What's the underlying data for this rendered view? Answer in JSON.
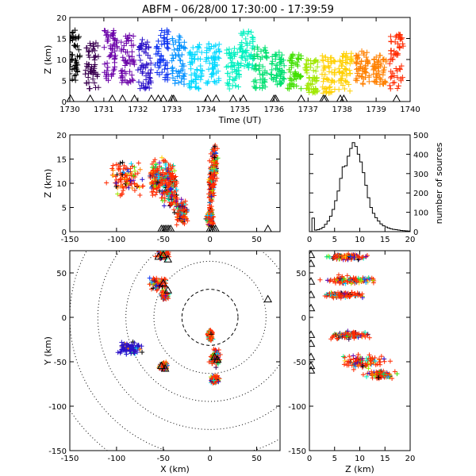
{
  "title": "ABFM - 06/28/00 17:30:00 - 17:39:59",
  "colors": {
    "triangle": "#000000",
    "frame": "#000000",
    "ring": "#000000",
    "palette": [
      "#000000",
      "#3a0050",
      "#6a00a8",
      "#2a10c8",
      "#0a30f0",
      "#0090ff",
      "#00d8ff",
      "#00f0c0",
      "#00e070",
      "#40e000",
      "#a0e800",
      "#ffd000",
      "#ff8000",
      "#ff2a00"
    ]
  },
  "chart_data": [
    {
      "id": "time_height",
      "type": "scatter",
      "xlabel": "Time (UT)",
      "ylabel": "Z (km)",
      "xlim": [
        1730,
        1740
      ],
      "ylim": [
        0,
        20
      ],
      "xticks": [
        "1730",
        "1731",
        "1732",
        "1733",
        "1734",
        "1735",
        "1736",
        "1737",
        "1738",
        "1739",
        "1740"
      ],
      "yticks": [
        "0",
        "5",
        "10",
        "15",
        "20"
      ],
      "clusters": [
        {
          "t": 1730.1,
          "zmin": 5,
          "zmax": 17,
          "ci": 0
        },
        {
          "t": 1730.65,
          "zmin": 3,
          "zmax": 14,
          "ci": 1
        },
        {
          "t": 1731.2,
          "zmin": 5,
          "zmax": 17,
          "ci": 2
        },
        {
          "t": 1731.7,
          "zmin": 4,
          "zmax": 16,
          "ci": 2
        },
        {
          "t": 1732.2,
          "zmin": 3,
          "zmax": 15,
          "ci": 3
        },
        {
          "t": 1732.7,
          "zmin": 5,
          "zmax": 17,
          "ci": 4
        },
        {
          "t": 1733.2,
          "zmin": 4,
          "zmax": 16,
          "ci": 5
        },
        {
          "t": 1733.7,
          "zmin": 3,
          "zmax": 14,
          "ci": 6
        },
        {
          "t": 1734.2,
          "zmin": 4,
          "zmax": 14,
          "ci": 6
        },
        {
          "t": 1734.8,
          "zmin": 3,
          "zmax": 13,
          "ci": 7
        },
        {
          "t": 1735.2,
          "zmin": 8,
          "zmax": 17,
          "ci": 7
        },
        {
          "t": 1735.6,
          "zmin": 3,
          "zmax": 13,
          "ci": 8
        },
        {
          "t": 1736.1,
          "zmin": 4,
          "zmax": 12,
          "ci": 8
        },
        {
          "t": 1736.6,
          "zmin": 3,
          "zmax": 12,
          "ci": 9
        },
        {
          "t": 1737.1,
          "zmin": 2,
          "zmax": 10,
          "ci": 10
        },
        {
          "t": 1737.6,
          "zmin": 2,
          "zmax": 11,
          "ci": 11
        },
        {
          "t": 1738.1,
          "zmin": 2,
          "zmax": 12,
          "ci": 11
        },
        {
          "t": 1738.6,
          "zmin": 4,
          "zmax": 12,
          "ci": 12
        },
        {
          "t": 1739.1,
          "zmin": 4,
          "zmax": 11,
          "ci": 12
        },
        {
          "t": 1739.6,
          "zmin": 3,
          "zmax": 16,
          "ci": 13
        }
      ],
      "triangles_t": [
        1730.02,
        1730.6,
        1731.25,
        1731.55,
        1731.9,
        1732.4,
        1732.6,
        1732.75,
        1733.0,
        1733.05,
        1734.05,
        1734.3,
        1734.8,
        1735.1,
        1736.0,
        1736.05,
        1736.8,
        1737.45,
        1737.5,
        1737.95,
        1738.05,
        1739.6
      ]
    },
    {
      "id": "x_height",
      "type": "scatter",
      "xlabel": "",
      "ylabel": "Z (km)",
      "xlim": [
        -150,
        75
      ],
      "ylim": [
        0,
        20
      ],
      "xticks": [
        "-150",
        "-100",
        "-50",
        "0",
        "50"
      ],
      "yticks": [
        "0",
        "5",
        "10",
        "15",
        "20"
      ],
      "clusters": [
        {
          "x": -47,
          "z": 10,
          "rx": 9,
          "rz": 6
        },
        {
          "x": -58,
          "z": 11,
          "rx": 8,
          "rz": 4
        },
        {
          "x": -40,
          "z": 9,
          "rx": 6,
          "rz": 5
        },
        {
          "x": -90,
          "z": 11,
          "rx": 20,
          "rz": 4
        },
        {
          "x": -30,
          "z": 4,
          "rx": 6,
          "rz": 3
        },
        {
          "x": 2,
          "z": 10,
          "rx": 4,
          "rz": 6
        },
        {
          "x": 5,
          "z": 14,
          "rx": 3,
          "rz": 4
        },
        {
          "x": 0,
          "z": 3,
          "rx": 4,
          "rz": 2
        }
      ],
      "triangles_x": [
        -52,
        -50,
        -48,
        -46,
        -44,
        -42,
        0,
        2,
        4,
        6,
        62
      ]
    },
    {
      "id": "height_histogram",
      "type": "histogram",
      "xlabel": "",
      "ylabel": "number of sources",
      "xlim": [
        0,
        20
      ],
      "ylim": [
        0,
        500
      ],
      "xticks": [
        "0",
        "5",
        "10",
        "15",
        "20"
      ],
      "yticks": [
        "0",
        "100",
        "200",
        "300",
        "400",
        "500"
      ],
      "bin_width": 0.5,
      "values": [
        0,
        70,
        8,
        10,
        15,
        22,
        38,
        55,
        80,
        115,
        160,
        210,
        275,
        335,
        340,
        390,
        430,
        460,
        440,
        400,
        360,
        305,
        240,
        175,
        125,
        95,
        72,
        55,
        40,
        30,
        24,
        19,
        15,
        12,
        10,
        8,
        6,
        5,
        4,
        3
      ]
    },
    {
      "id": "plan_view",
      "type": "scatter",
      "xlabel": "X (km)",
      "ylabel": "Y (km)",
      "xlim": [
        -150,
        75
      ],
      "ylim": [
        -150,
        75
      ],
      "xticks": [
        "-150",
        "-100",
        "-50",
        "0",
        "50"
      ],
      "yticks": [
        "-150",
        "-100",
        "-50",
        "0",
        "50"
      ],
      "range_rings_km": [
        30,
        60,
        90,
        120,
        150,
        180
      ],
      "clusters": [
        {
          "x": -50,
          "y": 70,
          "rx": 8,
          "ry": 5
        },
        {
          "x": -55,
          "y": 38,
          "rx": 12,
          "ry": 8
        },
        {
          "x": -48,
          "y": 25,
          "rx": 4,
          "ry": 5
        },
        {
          "x": -85,
          "y": -35,
          "rx": 15,
          "ry": 8
        },
        {
          "x": -50,
          "y": -55,
          "rx": 5,
          "ry": 5
        },
        {
          "x": 0,
          "y": -20,
          "rx": 3,
          "ry": 6
        },
        {
          "x": 5,
          "y": -45,
          "rx": 6,
          "ry": 10
        },
        {
          "x": 5,
          "y": -70,
          "rx": 5,
          "ry": 5
        }
      ],
      "triangles": [
        [
          -50,
          70
        ],
        [
          -45,
          65
        ],
        [
          -55,
          68
        ],
        [
          -50,
          38
        ],
        [
          -45,
          30
        ],
        [
          -52,
          -55
        ],
        [
          -48,
          -58
        ],
        [
          5,
          -45
        ],
        [
          8,
          -48
        ],
        [
          62,
          20
        ]
      ]
    },
    {
      "id": "height_y",
      "type": "scatter",
      "xlabel": "Z (km)",
      "ylabel": "",
      "xlim": [
        0,
        20
      ],
      "ylim": [
        -150,
        75
      ],
      "xticks": [
        "0",
        "5",
        "10",
        "15",
        "20"
      ],
      "yticks": [
        "-150",
        "-100",
        "-50",
        "0",
        "50"
      ],
      "clusters": [
        {
          "z": 8,
          "y": 68,
          "rz": 5,
          "ry": 4
        },
        {
          "z": 8,
          "y": 42,
          "rz": 6,
          "ry": 5
        },
        {
          "z": 7,
          "y": 25,
          "rz": 5,
          "ry": 4
        },
        {
          "z": 8,
          "y": -20,
          "rz": 4,
          "ry": 5
        },
        {
          "z": 11,
          "y": -50,
          "rz": 5,
          "ry": 8
        },
        {
          "z": 14,
          "y": -65,
          "rz": 3,
          "ry": 5
        }
      ],
      "triangles": [
        [
          0,
          70
        ],
        [
          0,
          60
        ],
        [
          0,
          40
        ],
        [
          0,
          25
        ],
        [
          0,
          10
        ],
        [
          0,
          -20
        ],
        [
          0,
          -30
        ],
        [
          0,
          -45
        ],
        [
          0,
          -55
        ],
        [
          0,
          -60
        ]
      ]
    }
  ]
}
